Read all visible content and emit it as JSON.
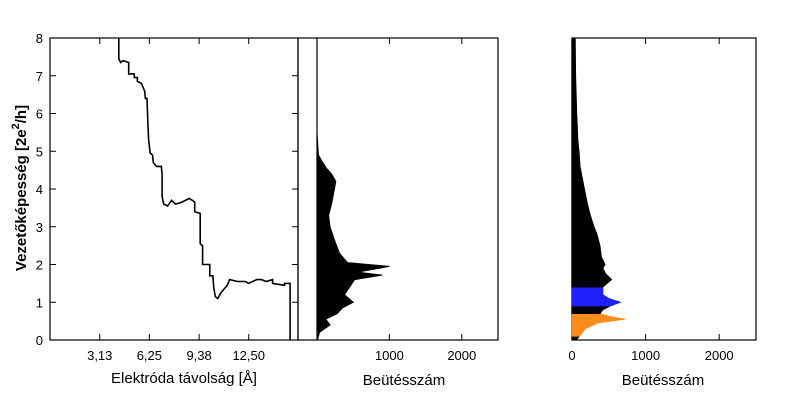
{
  "chart_data": [
    {
      "type": "line",
      "name": "conductance-trace",
      "xlabel": "Elektróda távolság [Å]",
      "ylabel": "Vezetőképesség [2e²/h]",
      "ylabel_main": "Vezetőképesség [2e",
      "ylabel_sup": "2",
      "ylabel_tail": "/h]",
      "xlim": [
        0,
        15.6
      ],
      "ylim": [
        0,
        8
      ],
      "xticks": [
        {
          "value": 3.13,
          "label": "3,13"
        },
        {
          "value": 6.25,
          "label": "6,25"
        },
        {
          "value": 9.38,
          "label": "9,38"
        },
        {
          "value": 12.5,
          "label": "12,50"
        }
      ],
      "yticks": [
        {
          "value": 0,
          "label": "0"
        },
        {
          "value": 1,
          "label": "1"
        },
        {
          "value": 2,
          "label": "2"
        },
        {
          "value": 3,
          "label": "3"
        },
        {
          "value": 4,
          "label": "4"
        },
        {
          "value": 5,
          "label": "5"
        },
        {
          "value": 6,
          "label": "6"
        },
        {
          "value": 7,
          "label": "7"
        },
        {
          "value": 8,
          "label": "8"
        }
      ],
      "points": [
        [
          4.33,
          8.0
        ],
        [
          4.33,
          7.45
        ],
        [
          4.45,
          7.35
        ],
        [
          4.6,
          7.4
        ],
        [
          4.95,
          7.35
        ],
        [
          4.95,
          7.05
        ],
        [
          5.3,
          7.05
        ],
        [
          5.3,
          6.95
        ],
        [
          5.5,
          6.95
        ],
        [
          5.5,
          6.85
        ],
        [
          5.75,
          6.8
        ],
        [
          5.95,
          6.6
        ],
        [
          6.0,
          6.4
        ],
        [
          6.1,
          6.4
        ],
        [
          6.15,
          5.8
        ],
        [
          6.2,
          5.3
        ],
        [
          6.3,
          4.95
        ],
        [
          6.45,
          4.9
        ],
        [
          6.5,
          4.7
        ],
        [
          6.7,
          4.6
        ],
        [
          7.0,
          4.6
        ],
        [
          7.05,
          4.4
        ],
        [
          7.05,
          3.8
        ],
        [
          7.15,
          3.6
        ],
        [
          7.4,
          3.55
        ],
        [
          7.65,
          3.7
        ],
        [
          7.9,
          3.6
        ],
        [
          8.3,
          3.65
        ],
        [
          8.75,
          3.75
        ],
        [
          8.95,
          3.7
        ],
        [
          9.1,
          3.65
        ],
        [
          9.1,
          3.4
        ],
        [
          9.45,
          3.35
        ],
        [
          9.45,
          2.55
        ],
        [
          9.6,
          2.5
        ],
        [
          9.6,
          2.0
        ],
        [
          10.05,
          2.0
        ],
        [
          10.05,
          1.7
        ],
        [
          10.25,
          1.7
        ],
        [
          10.3,
          1.4
        ],
        [
          10.4,
          1.15
        ],
        [
          10.55,
          1.1
        ],
        [
          10.75,
          1.25
        ],
        [
          10.95,
          1.35
        ],
        [
          11.15,
          1.45
        ],
        [
          11.3,
          1.6
        ],
        [
          11.8,
          1.55
        ],
        [
          12.3,
          1.55
        ],
        [
          12.5,
          1.5
        ],
        [
          12.75,
          1.55
        ],
        [
          13.0,
          1.6
        ],
        [
          13.3,
          1.6
        ],
        [
          13.6,
          1.55
        ],
        [
          14.0,
          1.6
        ],
        [
          14.0,
          1.5
        ],
        [
          14.75,
          1.45
        ],
        [
          14.75,
          1.5
        ],
        [
          15.1,
          1.5
        ],
        [
          15.1,
          0.0
        ]
      ]
    },
    {
      "type": "area",
      "name": "histogram-trace",
      "xlabel": "Beütésszám",
      "xlim": [
        0,
        2500
      ],
      "ylim": [
        0,
        8
      ],
      "xticks": [
        {
          "value": 1000,
          "label": "1000"
        },
        {
          "value": 2000,
          "label": "2000"
        }
      ],
      "series": [
        {
          "color": "#000000",
          "profile": [
            [
              0,
              5
            ],
            [
              0.2,
              35
            ],
            [
              0.4,
              180
            ],
            [
              0.55,
              120
            ],
            [
              0.7,
              280
            ],
            [
              0.85,
              350
            ],
            [
              1.0,
              500
            ],
            [
              1.2,
              380
            ],
            [
              1.4,
              450
            ],
            [
              1.6,
              520
            ],
            [
              1.72,
              900
            ],
            [
              1.8,
              560
            ],
            [
              1.95,
              1000
            ],
            [
              2.05,
              420
            ],
            [
              2.3,
              310
            ],
            [
              2.6,
              250
            ],
            [
              3.0,
              180
            ],
            [
              3.3,
              160
            ],
            [
              3.6,
              200
            ],
            [
              3.9,
              230
            ],
            [
              4.2,
              260
            ],
            [
              4.4,
              200
            ],
            [
              4.55,
              130
            ],
            [
              4.7,
              80
            ],
            [
              4.9,
              20
            ],
            [
              5.5,
              0
            ],
            [
              8.0,
              0
            ]
          ]
        }
      ]
    },
    {
      "type": "area",
      "name": "histogram-all",
      "xlabel": "Beütésszám",
      "xlim": [
        0,
        2500
      ],
      "ylim": [
        0,
        8
      ],
      "xticks": [
        {
          "value": 0,
          "label": "0"
        },
        {
          "value": 1000,
          "label": "1000"
        },
        {
          "value": 2000,
          "label": "2000"
        }
      ],
      "profile": [
        [
          0.0,
          60
        ],
        [
          0.1,
          100
        ],
        [
          0.3,
          180
        ],
        [
          0.45,
          350
        ],
        [
          0.55,
          720
        ],
        [
          0.62,
          520
        ],
        [
          0.7,
          380
        ],
        [
          0.8,
          420
        ],
        [
          0.9,
          520
        ],
        [
          1.0,
          660
        ],
        [
          1.1,
          500
        ],
        [
          1.2,
          420
        ],
        [
          1.4,
          420
        ],
        [
          1.6,
          540
        ],
        [
          1.75,
          460
        ],
        [
          1.9,
          420
        ],
        [
          2.0,
          450
        ],
        [
          2.2,
          400
        ],
        [
          2.5,
          380
        ],
        [
          2.8,
          340
        ],
        [
          3.0,
          300
        ],
        [
          3.3,
          250
        ],
        [
          3.6,
          210
        ],
        [
          4.0,
          170
        ],
        [
          4.3,
          140
        ],
        [
          4.6,
          110
        ],
        [
          4.9,
          100
        ],
        [
          5.3,
          80
        ],
        [
          6.0,
          65
        ],
        [
          7.0,
          50
        ],
        [
          8.0,
          45
        ]
      ],
      "bands": [
        {
          "from": 0.0,
          "to": 0.1,
          "color": "#000000"
        },
        {
          "from": 0.1,
          "to": 0.7,
          "color": "#ff8c1a"
        },
        {
          "from": 0.7,
          "to": 0.9,
          "color": "#000000"
        },
        {
          "from": 0.9,
          "to": 1.4,
          "color": "#2020ff"
        },
        {
          "from": 1.4,
          "to": 8.0,
          "color": "#000000"
        }
      ]
    }
  ]
}
